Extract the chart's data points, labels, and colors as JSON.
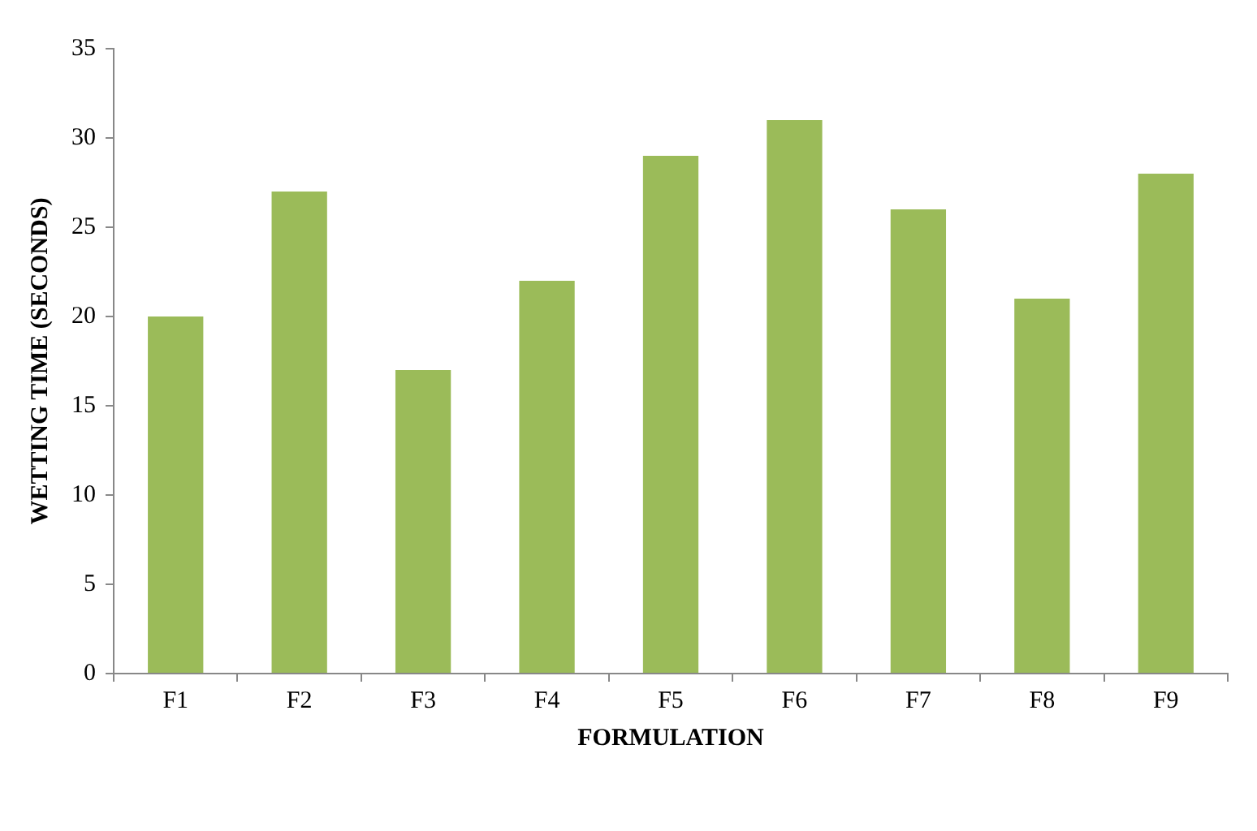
{
  "chart_data": {
    "type": "bar",
    "xlabel": "FORMULATION",
    "ylabel": "WETTING TIME (SECONDS)",
    "categories": [
      "F1",
      "F2",
      "F3",
      "F4",
      "F5",
      "F6",
      "F7",
      "F8",
      "F9"
    ],
    "values": [
      20,
      27,
      17,
      22,
      29,
      31,
      26,
      21,
      28
    ],
    "color": "#9bbb59",
    "ylim": [
      0,
      35
    ],
    "yticks": [
      0,
      5,
      10,
      15,
      20,
      25,
      30,
      35
    ],
    "grid": false,
    "legend": false
  }
}
